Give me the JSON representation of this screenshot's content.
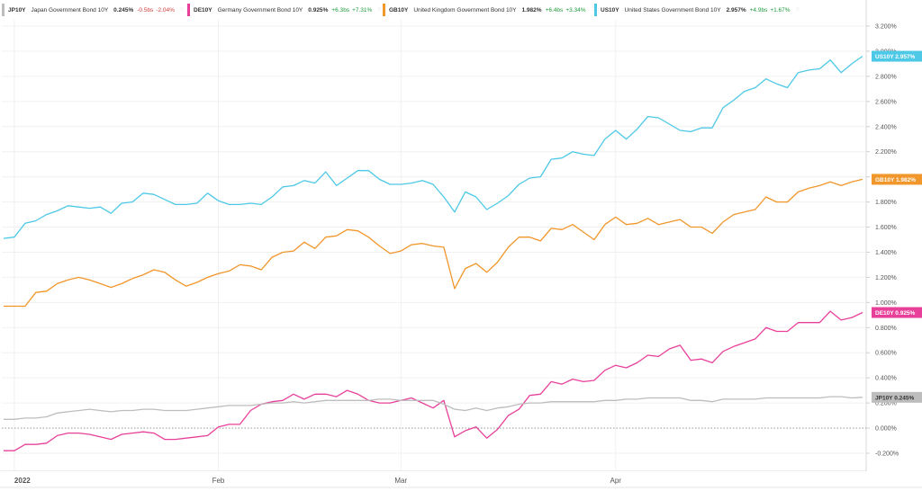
{
  "legend": [
    {
      "code": "JP10Y",
      "name": "Japan Government Bond 10Y",
      "value": "0.245",
      "unit": "%",
      "change": "-0.5",
      "change_unit": "bs",
      "change_pct": "-2.04",
      "change_pct_unit": "%",
      "color": "#bdbdbd",
      "trend": "neg"
    },
    {
      "code": "DE10Y",
      "name": "Germany Government Bond 10Y",
      "value": "0.925",
      "unit": "%",
      "change": "+6.3",
      "change_unit": "bs",
      "change_pct": "+7.31",
      "change_pct_unit": "%",
      "color": "#e8409a",
      "trend": "pos"
    },
    {
      "code": "GB10Y",
      "name": "United Kingdom Government Bond 10Y",
      "value": "1.982",
      "unit": "%",
      "change": "+6.4",
      "change_unit": "bs",
      "change_pct": "+3.34",
      "change_pct_unit": "%",
      "color": "#f0962a",
      "trend": "pos"
    },
    {
      "code": "US10Y",
      "name": "United States Government Bond 10Y",
      "value": "2.957",
      "unit": "%",
      "change": "+4.9",
      "change_unit": "bs",
      "change_pct": "+1.67",
      "change_pct_unit": "%",
      "color": "#4dc8e6",
      "trend": "pos"
    }
  ],
  "chart_data": {
    "type": "line",
    "ylim": [
      -0.3,
      3.35
    ],
    "yticks": [
      "3.200%",
      "3.000%",
      "2.800%",
      "2.600%",
      "2.400%",
      "2.200%",
      "2.000%",
      "1.800%",
      "1.600%",
      "1.400%",
      "1.200%",
      "1.000%",
      "0.800%",
      "0.600%",
      "0.400%",
      "0.200%",
      "0.000%",
      "-0.200%"
    ],
    "ytick_values": [
      3.2,
      3.0,
      2.8,
      2.6,
      2.4,
      2.2,
      2.0,
      1.8,
      1.6,
      1.4,
      1.2,
      1.0,
      0.8,
      0.6,
      0.4,
      0.2,
      0.0,
      -0.2
    ],
    "xticks": [
      {
        "label": "2022",
        "i": 1
      },
      {
        "label": "Feb",
        "i": 20
      },
      {
        "label": "Mar",
        "i": 37
      },
      {
        "label": "Apr",
        "i": 57
      }
    ],
    "grid": true,
    "zero_line": 0.0,
    "series": [
      {
        "name": "US10Y",
        "color": "#4dc8e6",
        "last_label": "2.957%",
        "values": [
          1.51,
          1.52,
          1.63,
          1.65,
          1.7,
          1.73,
          1.77,
          1.76,
          1.75,
          1.76,
          1.71,
          1.79,
          1.8,
          1.87,
          1.86,
          1.82,
          1.78,
          1.78,
          1.79,
          1.87,
          1.81,
          1.78,
          1.78,
          1.79,
          1.78,
          1.84,
          1.92,
          1.93,
          1.97,
          1.95,
          2.04,
          1.93,
          1.99,
          2.05,
          2.05,
          1.98,
          1.94,
          1.94,
          1.95,
          1.97,
          1.94,
          1.84,
          1.72,
          1.88,
          1.84,
          1.74,
          1.79,
          1.85,
          1.94,
          1.99,
          2.0,
          2.14,
          2.15,
          2.2,
          2.18,
          2.17,
          2.3,
          2.37,
          2.3,
          2.38,
          2.48,
          2.47,
          2.42,
          2.37,
          2.36,
          2.39,
          2.39,
          2.55,
          2.61,
          2.68,
          2.71,
          2.78,
          2.74,
          2.71,
          2.83,
          2.85,
          2.86,
          2.93,
          2.83,
          2.9,
          2.96
        ]
      },
      {
        "name": "GB10Y",
        "color": "#f0962a",
        "last_label": "1.982%",
        "values": [
          0.97,
          0.97,
          0.97,
          1.08,
          1.09,
          1.15,
          1.18,
          1.2,
          1.18,
          1.15,
          1.12,
          1.15,
          1.19,
          1.22,
          1.26,
          1.24,
          1.18,
          1.13,
          1.16,
          1.2,
          1.23,
          1.25,
          1.3,
          1.29,
          1.26,
          1.36,
          1.4,
          1.41,
          1.48,
          1.43,
          1.52,
          1.53,
          1.58,
          1.57,
          1.52,
          1.45,
          1.39,
          1.41,
          1.46,
          1.47,
          1.45,
          1.44,
          1.11,
          1.27,
          1.31,
          1.24,
          1.32,
          1.44,
          1.52,
          1.52,
          1.49,
          1.59,
          1.58,
          1.62,
          1.56,
          1.5,
          1.62,
          1.68,
          1.62,
          1.63,
          1.67,
          1.62,
          1.64,
          1.66,
          1.6,
          1.6,
          1.55,
          1.64,
          1.7,
          1.72,
          1.74,
          1.84,
          1.8,
          1.8,
          1.88,
          1.91,
          1.93,
          1.96,
          1.93,
          1.96,
          1.98
        ]
      },
      {
        "name": "DE10Y",
        "color": "#e8409a",
        "last_label": "0.925%",
        "values": [
          -0.18,
          -0.18,
          -0.13,
          -0.13,
          -0.12,
          -0.06,
          -0.04,
          -0.04,
          -0.05,
          -0.07,
          -0.09,
          -0.05,
          -0.04,
          -0.03,
          -0.04,
          -0.09,
          -0.09,
          -0.08,
          -0.07,
          -0.06,
          0.01,
          0.03,
          0.03,
          0.14,
          0.19,
          0.21,
          0.22,
          0.27,
          0.23,
          0.27,
          0.27,
          0.25,
          0.3,
          0.27,
          0.22,
          0.2,
          0.2,
          0.22,
          0.24,
          0.2,
          0.16,
          0.22,
          -0.07,
          -0.02,
          0.01,
          -0.08,
          -0.01,
          0.1,
          0.15,
          0.26,
          0.27,
          0.37,
          0.35,
          0.39,
          0.37,
          0.38,
          0.46,
          0.5,
          0.48,
          0.52,
          0.58,
          0.57,
          0.63,
          0.66,
          0.54,
          0.55,
          0.52,
          0.61,
          0.65,
          0.68,
          0.71,
          0.8,
          0.77,
          0.77,
          0.84,
          0.84,
          0.84,
          0.93,
          0.86,
          0.88,
          0.92
        ]
      },
      {
        "name": "JP10Y",
        "color": "#bdbdbd",
        "last_label": "0.245%",
        "values": [
          0.07,
          0.07,
          0.08,
          0.08,
          0.09,
          0.12,
          0.13,
          0.14,
          0.15,
          0.14,
          0.13,
          0.14,
          0.14,
          0.15,
          0.15,
          0.14,
          0.14,
          0.14,
          0.15,
          0.16,
          0.17,
          0.18,
          0.18,
          0.18,
          0.19,
          0.2,
          0.2,
          0.21,
          0.2,
          0.21,
          0.22,
          0.22,
          0.22,
          0.22,
          0.22,
          0.23,
          0.23,
          0.22,
          0.22,
          0.22,
          0.22,
          0.19,
          0.15,
          0.14,
          0.16,
          0.14,
          0.16,
          0.17,
          0.19,
          0.2,
          0.2,
          0.21,
          0.21,
          0.21,
          0.21,
          0.21,
          0.22,
          0.22,
          0.23,
          0.23,
          0.24,
          0.24,
          0.24,
          0.24,
          0.22,
          0.22,
          0.21,
          0.23,
          0.23,
          0.23,
          0.23,
          0.24,
          0.24,
          0.24,
          0.24,
          0.24,
          0.24,
          0.25,
          0.25,
          0.24,
          0.245
        ]
      }
    ]
  }
}
